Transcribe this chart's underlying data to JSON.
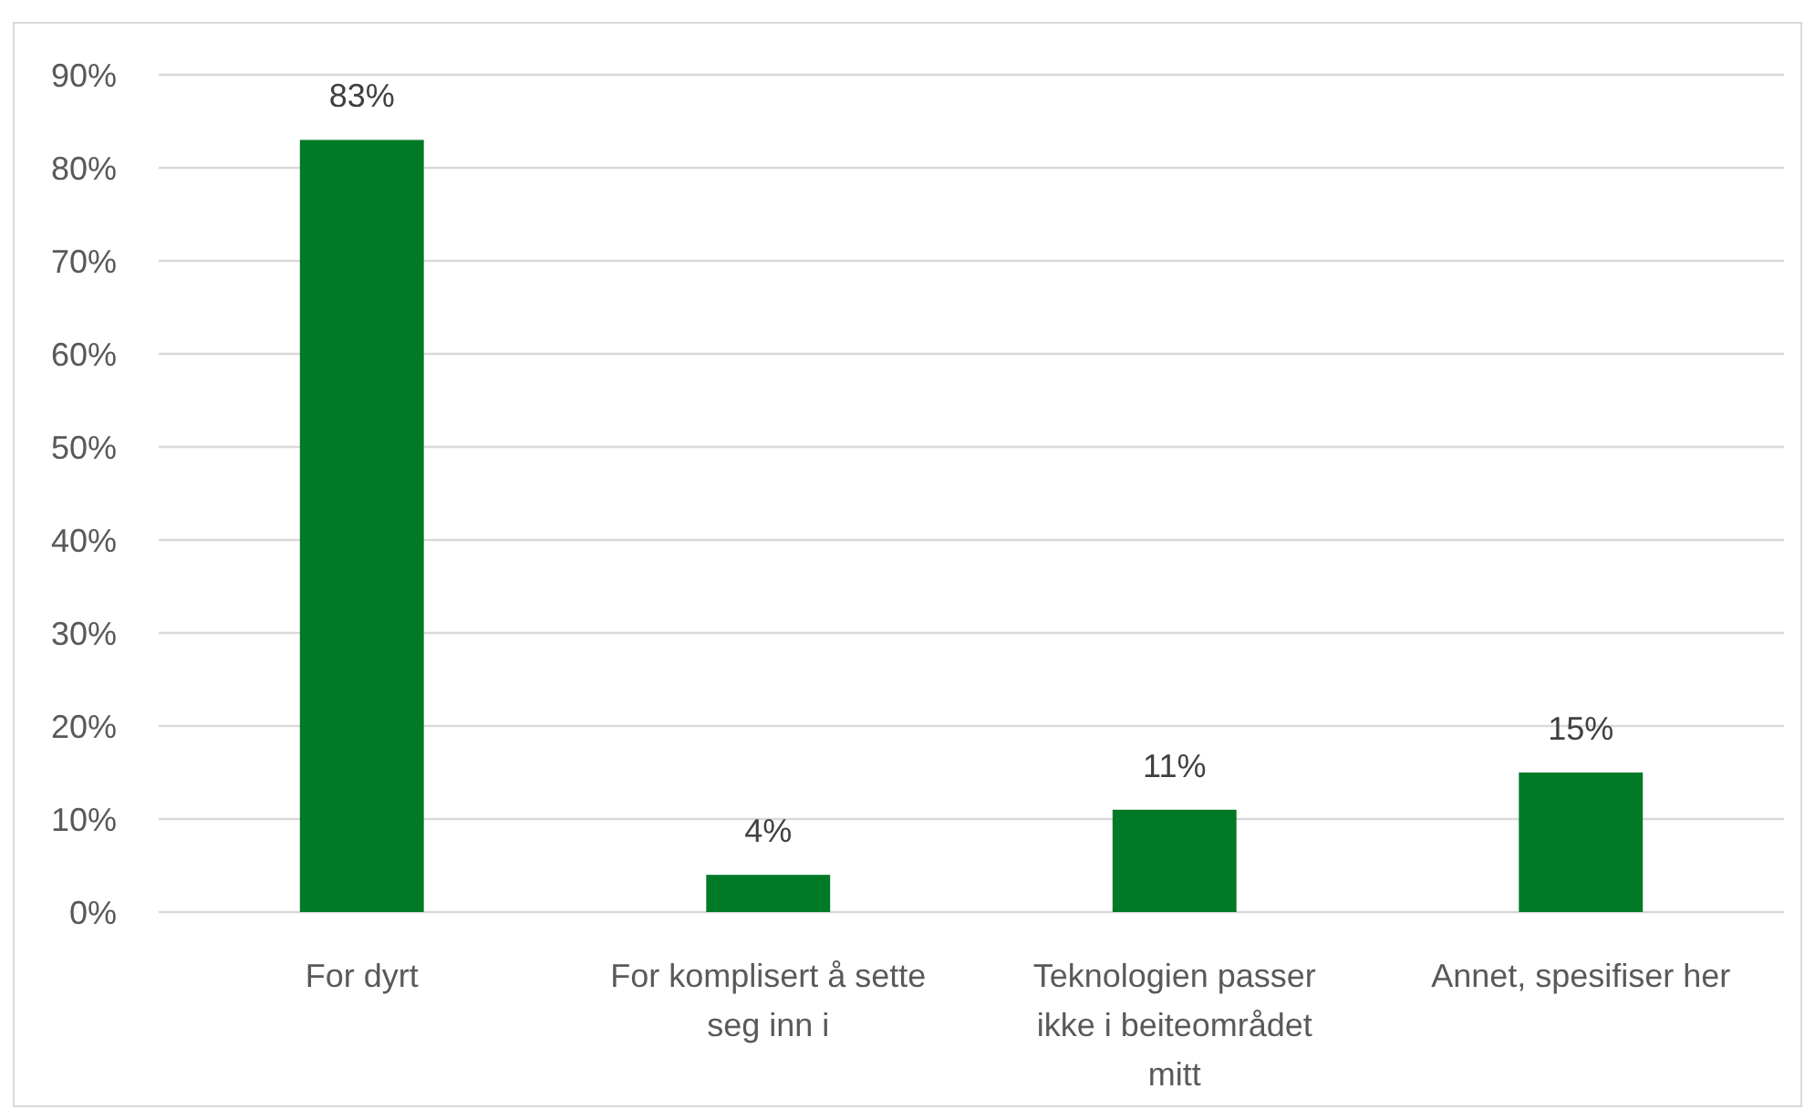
{
  "chart_data": {
    "type": "bar",
    "categories": [
      "For dyrt",
      "For komplisert å sette seg inn i",
      "Teknologien passer ikke i beiteområdet mitt",
      "Annet, spesifiser her"
    ],
    "values": [
      83,
      4,
      11,
      15
    ],
    "color": "#007a27",
    "value_labels": [
      "83%",
      "4%",
      "11%",
      "15%"
    ],
    "ylim": [
      0,
      90
    ],
    "yticks": [
      {
        "value": 0,
        "label": "0%"
      },
      {
        "value": 10,
        "label": "10%"
      },
      {
        "value": 20,
        "label": "20%"
      },
      {
        "value": 30,
        "label": "30%"
      },
      {
        "value": 40,
        "label": "40%"
      },
      {
        "value": 50,
        "label": "50%"
      },
      {
        "value": 60,
        "label": "60%"
      },
      {
        "value": 70,
        "label": "70%"
      },
      {
        "value": 80,
        "label": "80%"
      },
      {
        "value": 90,
        "label": "90%"
      }
    ],
    "grid": "y"
  }
}
